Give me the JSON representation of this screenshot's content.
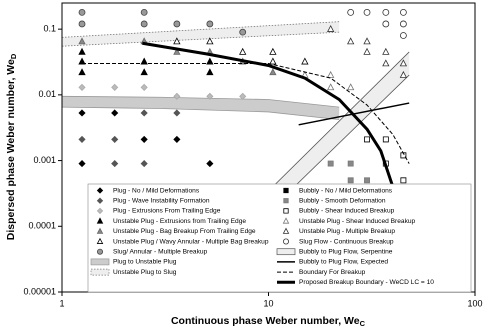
{
  "chart_data": {
    "type": "scatter",
    "x_label": "Continuous phase Weber number, We",
    "x_label_sub": "C",
    "y_label": "Dispersed phase Weber number, We",
    "y_label_sub": "D",
    "xlim": [
      1,
      100
    ],
    "xticks": [
      1,
      10,
      100
    ],
    "xscale": "log",
    "ylim": [
      1e-05,
      0.25
    ],
    "yticks": [
      1e-05,
      0.0001,
      0.001,
      0.01,
      0.1
    ],
    "yscale": "log",
    "series": [
      {
        "name": "Plug - No / Mild Deformations",
        "kind": "scatter",
        "marker": "diamond",
        "color": "#000000",
        "edge": "#000000",
        "x": [
          1.25,
          1.8,
          1.25,
          2.5,
          3.6,
          5.2
        ],
        "values": [
          0.0053,
          0.0053,
          0.0009,
          0.0021,
          0.0021,
          0.0009
        ]
      },
      {
        "name": "Plug - Wave Instability Formation",
        "kind": "scatter",
        "marker": "diamond",
        "color": "#555555",
        "edge": "#555555",
        "x": [
          1.25,
          1.8,
          2.5,
          3.6,
          1.8,
          2.5
        ],
        "values": [
          0.0021,
          0.0021,
          0.0053,
          0.0053,
          0.0009,
          0.0009
        ]
      },
      {
        "name": "Plug - Extrusions From Trailing Edge",
        "kind": "scatter",
        "marker": "diamond",
        "color": "#bbbbbb",
        "edge": "#aaaaaa",
        "x": [
          1.25,
          1.8,
          2.5,
          3.6,
          5.2,
          7.5
        ],
        "values": [
          0.013,
          0.013,
          0.013,
          0.0095,
          0.0095,
          0.0095
        ]
      },
      {
        "name": "Unstable Plug - Extrusions from Trailing Edge",
        "kind": "scatter",
        "marker": "triangle",
        "color": "#000000",
        "edge": "#000000",
        "x": [
          1.25,
          1.25,
          1.25,
          2.5,
          2.5,
          5.2,
          5.2
        ],
        "values": [
          0.022,
          0.032,
          0.045,
          0.022,
          0.032,
          0.022,
          0.032
        ]
      },
      {
        "name": "Unstable Plug - Bag Breakup From Trailing Edge",
        "kind": "scatter",
        "marker": "triangle",
        "color": "#888888",
        "edge": "#666666",
        "x": [
          1.25,
          2.5,
          3.6,
          5.2,
          7.5,
          10.5
        ],
        "values": [
          0.065,
          0.065,
          0.045,
          0.045,
          0.032,
          0.022
        ]
      },
      {
        "name": "Unstable Plug / Wavy Annular - Multiple Bag Breakup",
        "kind": "scatter",
        "marker": "triangle",
        "color": "#ffffff",
        "edge": "#000000",
        "x": [
          3.6,
          5.2,
          7.5,
          10.5,
          10.5,
          15
        ],
        "values": [
          0.065,
          0.065,
          0.045,
          0.045,
          0.032,
          0.032
        ]
      },
      {
        "name": "Slug/ Annular - Multiple Breakup",
        "kind": "scatter",
        "marker": "circle",
        "color": "#999999",
        "edge": "#444444",
        "x": [
          1.25,
          1.25,
          2.5,
          2.5,
          3.6,
          5.2,
          7.5
        ],
        "values": [
          0.18,
          0.12,
          0.18,
          0.12,
          0.12,
          0.12,
          0.09
        ]
      },
      {
        "name": "Plug to Unstable Plug",
        "kind": "band",
        "color": "#cccccc",
        "edge": "#999999",
        "dash": "",
        "x": [
          1,
          3,
          10,
          22
        ],
        "lower": [
          0.0065,
          0.0062,
          0.0055,
          0.0042
        ],
        "upper": [
          0.0095,
          0.0092,
          0.0085,
          0.0065
        ]
      },
      {
        "name": "Unstable Plug to Slug",
        "kind": "band",
        "color": "#eeeeee",
        "edge": "#777777",
        "dash": "1.5 1.5",
        "x": [
          1,
          22
        ],
        "lower": [
          0.055,
          0.09
        ],
        "upper": [
          0.075,
          0.13
        ]
      },
      {
        "name": "Bubbly - No / Mild Deformations",
        "kind": "scatter",
        "marker": "square",
        "color": "#000000",
        "edge": "#000000",
        "x": [
          15,
          20,
          25
        ],
        "values": [
          0.00028,
          0.00028,
          0.00035
        ]
      },
      {
        "name": "Bubbly - Smooth Deformation",
        "kind": "scatter",
        "marker": "square",
        "color": "#888888",
        "edge": "#777777",
        "x": [
          20,
          25,
          30,
          25,
          30
        ],
        "values": [
          0.0009,
          0.0009,
          0.0005,
          0.0005,
          0.00028
        ]
      },
      {
        "name": "Bubbly - Shear Induced Breakup",
        "kind": "scatter",
        "marker": "square",
        "color": "#ffffff",
        "edge": "#000000",
        "x": [
          30,
          37,
          45,
          37,
          45
        ],
        "values": [
          0.0021,
          0.0021,
          0.0012,
          0.0009,
          0.0005
        ]
      },
      {
        "name": "Unstable Plug - Shear Induced Breakup",
        "kind": "scatter",
        "marker": "triangle",
        "color": "#ffffff",
        "edge": "#777777",
        "x": [
          15,
          20,
          20,
          25
        ],
        "values": [
          0.02,
          0.02,
          0.013,
          0.013
        ]
      },
      {
        "name": "Unstable Plug - Multiple Breakup",
        "kind": "scatter",
        "marker": "triangle",
        "color": "#ffffff",
        "edge": "#333333",
        "x": [
          20,
          25,
          30,
          30,
          37,
          37,
          45,
          45
        ],
        "values": [
          0.1,
          0.065,
          0.065,
          0.045,
          0.045,
          0.03,
          0.03,
          0.02
        ]
      },
      {
        "name": "Slug Flow - Continuous Breakup",
        "kind": "scatter",
        "marker": "circle",
        "color": "#ffffff",
        "edge": "#333333",
        "x": [
          25,
          30,
          37,
          45,
          37,
          45,
          45
        ],
        "values": [
          0.18,
          0.18,
          0.18,
          0.18,
          0.12,
          0.12,
          0.08
        ]
      },
      {
        "name": "Bubbly to Plug Flow, Serpentine",
        "kind": "band",
        "color": "#eeeeee",
        "edge": "#555555",
        "dash": "",
        "x": [
          5,
          48
        ],
        "lower": [
          2e-05,
          0.02
        ],
        "upper": [
          4e-05,
          0.045
        ]
      },
      {
        "name": "Bubbly to Plug Flow, Expected",
        "kind": "line",
        "color": "#000000",
        "width": 1.5,
        "dash": "",
        "x": [
          14,
          48
        ],
        "values": [
          0.0035,
          0.0075
        ]
      },
      {
        "name": "Boundary For Breakup",
        "kind": "line",
        "color": "#000000",
        "width": 1,
        "dash": "4 2",
        "x": [
          1.25,
          10,
          20,
          30,
          40,
          48
        ],
        "values": [
          0.03,
          0.03,
          0.018,
          0.007,
          0.0025,
          0.0009
        ]
      },
      {
        "name": "Proposed Breakup Boundary - WeCD LC = 10",
        "kind": "line",
        "color": "#000000",
        "width": 3,
        "dash": "",
        "x": [
          2.45,
          5,
          10,
          15,
          22,
          30,
          35,
          40,
          44,
          46
        ],
        "values": [
          0.061,
          0.042,
          0.028,
          0.018,
          0.0085,
          0.003,
          0.0014,
          0.0004,
          8e-05,
          1.2e-05
        ]
      }
    ]
  }
}
